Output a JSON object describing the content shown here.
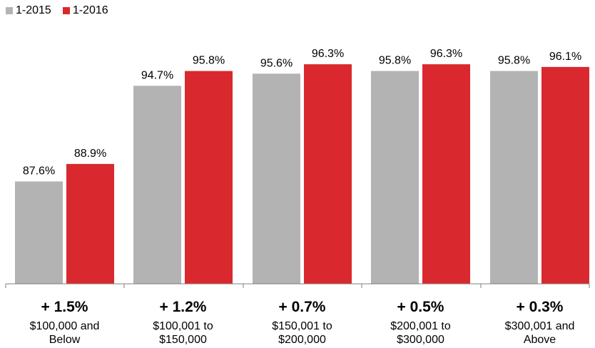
{
  "chart_data": {
    "type": "bar",
    "categories": [
      [
        "$100,000 and",
        "Below"
      ],
      [
        "$100,001 to",
        "$150,000"
      ],
      [
        "$150,001 to",
        "$200,000"
      ],
      [
        "$200,001 to",
        "$300,000"
      ],
      [
        "$300,001 and",
        "Above"
      ]
    ],
    "changes": [
      "+ 1.5%",
      "+ 1.2%",
      "+ 0.7%",
      "+ 0.5%",
      "+ 0.3%"
    ],
    "series": [
      {
        "name": "1-2015",
        "color": "#b3b3b3",
        "values": [
          87.6,
          94.7,
          95.6,
          95.8,
          95.8
        ],
        "labels": [
          "87.6%",
          "94.7%",
          "95.6%",
          "95.8%",
          "95.8%"
        ]
      },
      {
        "name": "1-2016",
        "color": "#d9292e",
        "values": [
          88.9,
          95.8,
          96.3,
          96.3,
          96.1
        ],
        "labels": [
          "88.9%",
          "95.8%",
          "96.3%",
          "96.3%",
          "96.1%"
        ]
      }
    ],
    "ylim": [
      80,
      98
    ],
    "grid": false,
    "legend_position": "top-left"
  }
}
